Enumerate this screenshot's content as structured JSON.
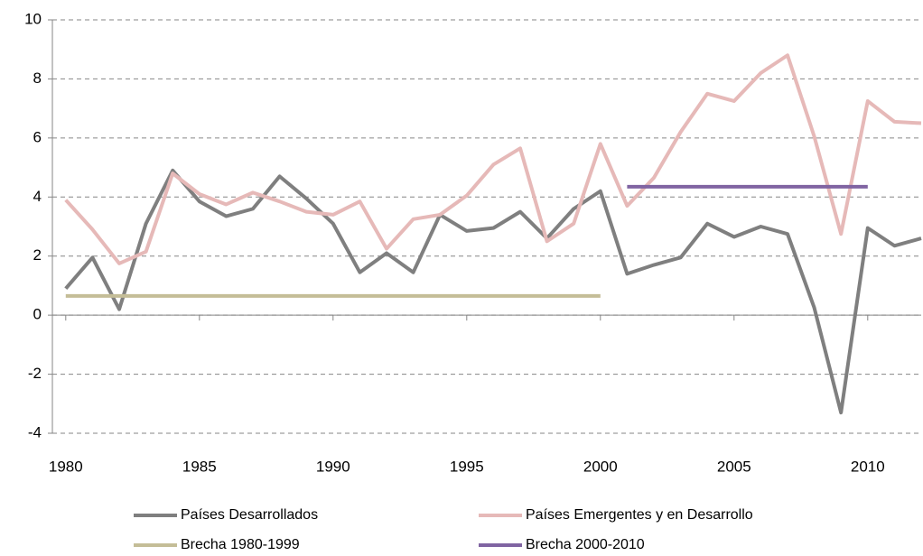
{
  "chart_data": {
    "type": "line",
    "xlim": [
      1979.5,
      2012
    ],
    "xticks": [
      1980,
      1985,
      1990,
      1995,
      2000,
      2005,
      2010
    ],
    "ylim": [
      -4,
      10
    ],
    "yticks": [
      -4,
      -2,
      0,
      2,
      4,
      6,
      8,
      10
    ],
    "grid": true,
    "series": [
      {
        "name": "Países Desarrollados",
        "color": "#7f7f7f",
        "x": [
          1980,
          1981,
          1982,
          1983,
          1984,
          1985,
          1986,
          1987,
          1988,
          1989,
          1990,
          1991,
          1992,
          1993,
          1994,
          1995,
          1996,
          1997,
          1998,
          1999,
          2000,
          2001,
          2002,
          2003,
          2004,
          2005,
          2006,
          2007,
          2008,
          2009,
          2010,
          2011,
          2012
        ],
        "values": [
          0.9,
          1.95,
          0.2,
          3.1,
          4.9,
          3.85,
          3.35,
          3.6,
          4.7,
          3.95,
          3.1,
          1.45,
          2.1,
          1.45,
          3.4,
          2.85,
          2.95,
          3.5,
          2.6,
          3.6,
          4.2,
          1.4,
          1.7,
          1.95,
          3.1,
          2.65,
          3.0,
          2.75,
          0.25,
          -3.3,
          2.95,
          2.35,
          2.6
        ]
      },
      {
        "name": "Países Emergentes y en Desarrollo",
        "color": "#e6b9b8",
        "x": [
          1980,
          1981,
          1982,
          1983,
          1984,
          1985,
          1986,
          1987,
          1988,
          1989,
          1990,
          1991,
          1992,
          1993,
          1994,
          1995,
          1996,
          1997,
          1998,
          1999,
          2000,
          2001,
          2002,
          2003,
          2004,
          2005,
          2006,
          2007,
          2008,
          2009,
          2010,
          2011,
          2012
        ],
        "values": [
          3.9,
          2.9,
          1.75,
          2.15,
          4.8,
          4.1,
          3.75,
          4.15,
          3.85,
          3.5,
          3.4,
          3.85,
          2.25,
          3.25,
          3.4,
          4.05,
          5.1,
          5.65,
          2.5,
          3.1,
          5.8,
          3.7,
          4.65,
          6.2,
          7.5,
          7.25,
          8.2,
          8.8,
          6.05,
          2.75,
          7.25,
          6.55,
          6.5
        ]
      },
      {
        "name": "Brecha 1980-1999",
        "color": "#c4bd97",
        "x": [
          1980,
          2000
        ],
        "values": [
          0.65,
          0.65
        ]
      },
      {
        "name": "Brecha 2000-2010",
        "color": "#8064a2",
        "x": [
          2001,
          2010
        ],
        "values": [
          4.35,
          4.35
        ]
      }
    ]
  }
}
